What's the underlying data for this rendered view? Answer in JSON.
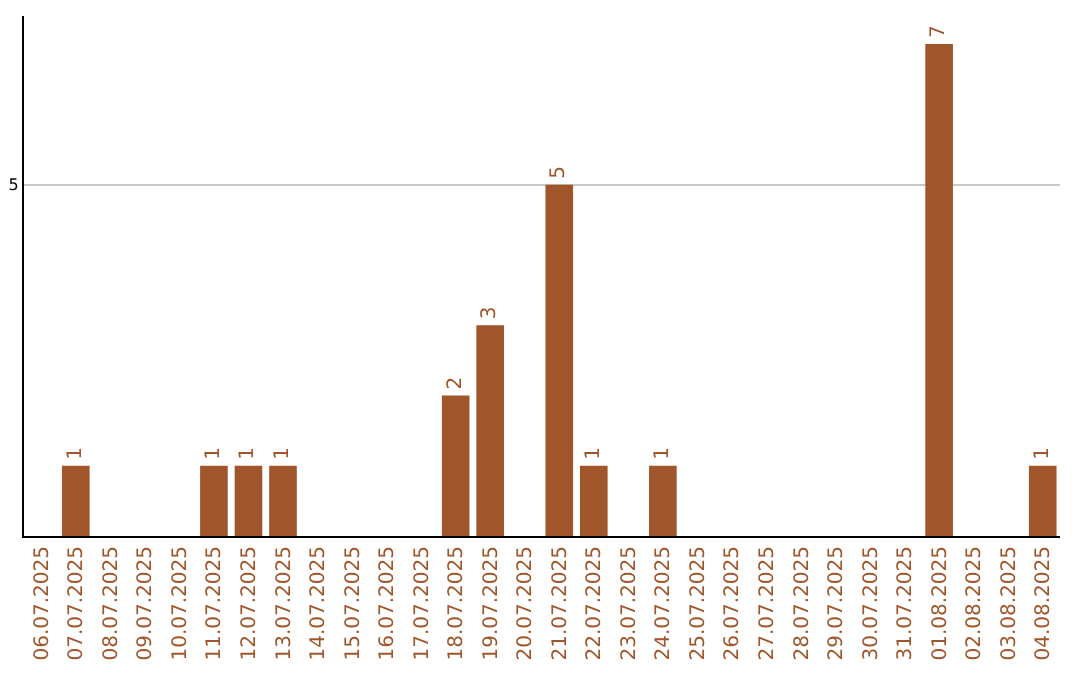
{
  "chart_data": {
    "type": "bar",
    "categories": [
      "06.07.2025",
      "07.07.2025",
      "08.07.2025",
      "09.07.2025",
      "10.07.2025",
      "11.07.2025",
      "12.07.2025",
      "13.07.2025",
      "14.07.2025",
      "15.07.2025",
      "16.07.2025",
      "17.07.2025",
      "18.07.2025",
      "19.07.2025",
      "20.07.2025",
      "21.07.2025",
      "22.07.2025",
      "23.07.2025",
      "24.07.2025",
      "25.07.2025",
      "26.07.2025",
      "27.07.2025",
      "28.07.2025",
      "29.07.2025",
      "30.07.2025",
      "31.07.2025",
      "01.08.2025",
      "02.08.2025",
      "03.08.2025",
      "04.08.2025"
    ],
    "values": [
      0,
      1,
      0,
      0,
      0,
      1,
      1,
      1,
      0,
      0,
      0,
      0,
      2,
      3,
      0,
      5,
      1,
      0,
      1,
      0,
      0,
      0,
      0,
      0,
      0,
      0,
      7,
      0,
      0,
      1
    ],
    "value_labels": [
      null,
      "1",
      null,
      null,
      null,
      "1",
      "1",
      "1",
      null,
      null,
      null,
      null,
      "2",
      "3",
      null,
      "5",
      "1",
      null,
      "1",
      null,
      null,
      null,
      null,
      null,
      null,
      null,
      "7",
      null,
      null,
      "1"
    ],
    "color": "#a0562a",
    "ylim": [
      0,
      7.4
    ],
    "yticks": [
      5
    ],
    "grid": "y"
  }
}
